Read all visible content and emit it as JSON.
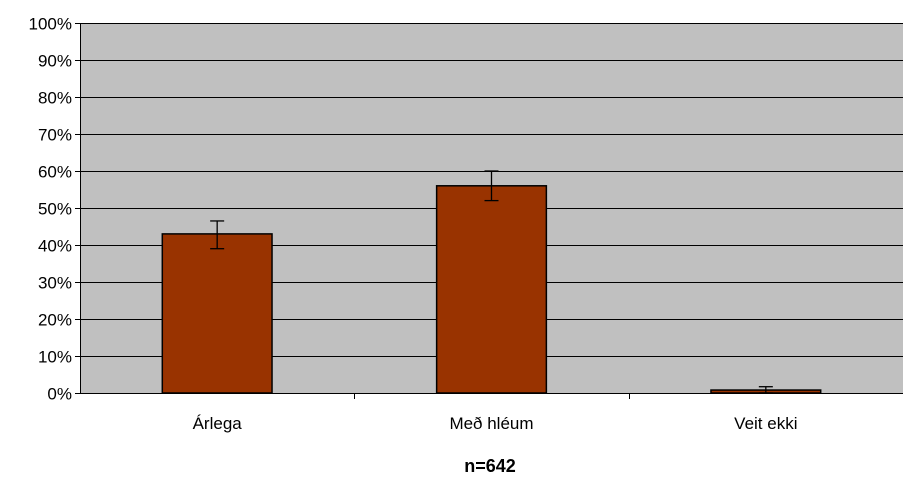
{
  "chart_data": {
    "type": "bar",
    "categories": [
      "Árlega",
      "Með hléum",
      "Veit ekki"
    ],
    "values": [
      43,
      56,
      0.8
    ],
    "error_bars": [
      {
        "low": 39,
        "high": 46.5
      },
      {
        "low": 52,
        "high": 60
      },
      {
        "low": 0,
        "high": 1.7
      }
    ],
    "title": "",
    "xlabel": "n=642",
    "ylabel": "",
    "ylim": [
      0,
      100
    ],
    "yticks": [
      0,
      10,
      20,
      30,
      40,
      50,
      60,
      70,
      80,
      90,
      100
    ],
    "ytick_labels": [
      "0%",
      "10%",
      "20%",
      "30%",
      "40%",
      "50%",
      "60%",
      "70%",
      "80%",
      "90%",
      "100%"
    ],
    "grid": true,
    "legend": "none",
    "colors": {
      "bar": "#993300",
      "plot_background": "#c0c0c0",
      "gridline": "#000000"
    }
  }
}
